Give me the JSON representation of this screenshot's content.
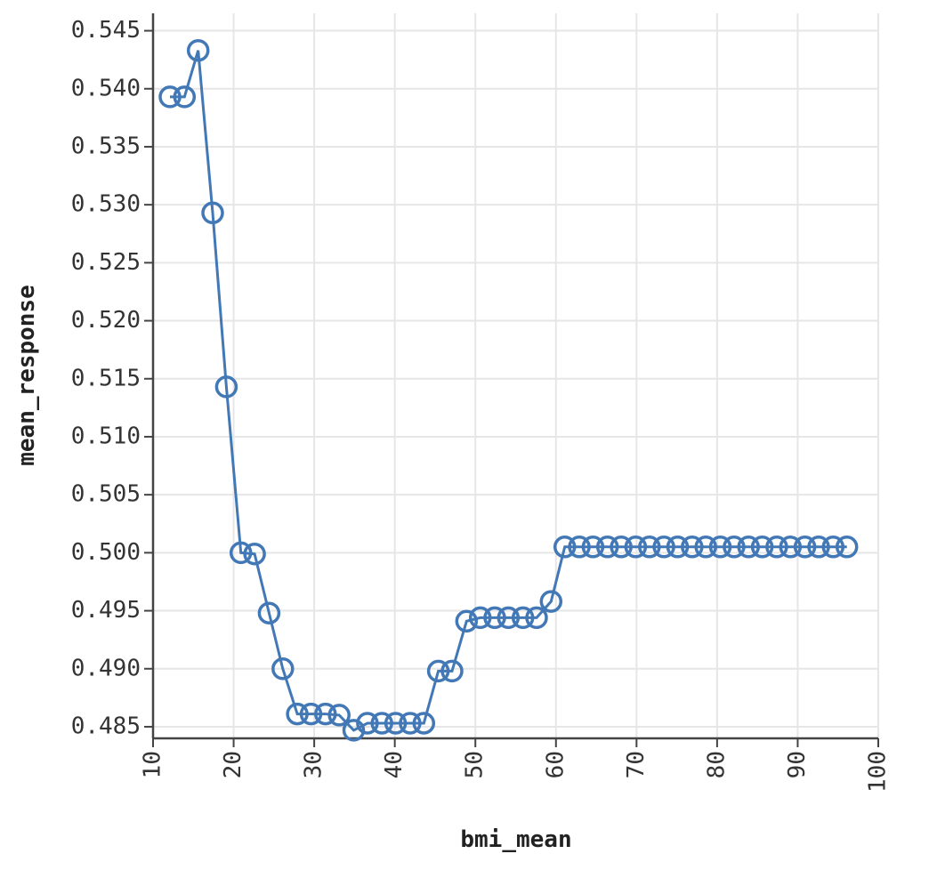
{
  "chart_data": {
    "type": "line",
    "xlabel": "bmi_mean",
    "ylabel": "mean_response",
    "xlim": [
      10,
      100
    ],
    "ylim": [
      0.484,
      0.5465
    ],
    "xticks": [
      10,
      20,
      30,
      40,
      50,
      60,
      70,
      80,
      90,
      100
    ],
    "yticks": [
      0.485,
      0.49,
      0.495,
      0.5,
      0.505,
      0.51,
      0.515,
      0.52,
      0.525,
      0.53,
      0.535,
      0.54,
      0.545
    ],
    "xtick_labels": [
      "10",
      "20",
      "30",
      "40",
      "50",
      "60",
      "70",
      "80",
      "90",
      "100"
    ],
    "ytick_labels": [
      "0.485",
      "0.490",
      "0.495",
      "0.500",
      "0.505",
      "0.510",
      "0.515",
      "0.520",
      "0.525",
      "0.530",
      "0.535",
      "0.540",
      "0.545"
    ],
    "grid": true,
    "color": "#4378b6",
    "series": [
      {
        "points": [
          [
            12.1,
            0.5393
          ],
          [
            13.9,
            0.5393
          ],
          [
            15.6,
            0.5433
          ],
          [
            17.4,
            0.5293
          ],
          [
            19.1,
            0.5143
          ],
          [
            20.9,
            0.5
          ],
          [
            22.6,
            0.4999
          ],
          [
            24.4,
            0.4948
          ],
          [
            26.1,
            0.49
          ],
          [
            27.9,
            0.4861
          ],
          [
            29.6,
            0.4861
          ],
          [
            31.4,
            0.4861
          ],
          [
            33.1,
            0.486
          ],
          [
            34.9,
            0.4847
          ],
          [
            36.6,
            0.4853
          ],
          [
            38.4,
            0.4853
          ],
          [
            40.1,
            0.4853
          ],
          [
            41.9,
            0.4853
          ],
          [
            43.6,
            0.4853
          ],
          [
            45.4,
            0.4898
          ],
          [
            47.1,
            0.4898
          ],
          [
            48.9,
            0.4941
          ],
          [
            50.6,
            0.4944
          ],
          [
            52.4,
            0.4944
          ],
          [
            54.1,
            0.4944
          ],
          [
            55.9,
            0.4944
          ],
          [
            57.6,
            0.4944
          ],
          [
            59.4,
            0.4958
          ],
          [
            61.1,
            0.5005
          ],
          [
            62.9,
            0.5005
          ],
          [
            64.6,
            0.5005
          ],
          [
            66.4,
            0.5005
          ],
          [
            68.1,
            0.5005
          ],
          [
            69.9,
            0.5005
          ],
          [
            71.6,
            0.5005
          ],
          [
            73.4,
            0.5005
          ],
          [
            75.1,
            0.5005
          ],
          [
            76.9,
            0.5005
          ],
          [
            78.6,
            0.5005
          ],
          [
            80.4,
            0.5005
          ],
          [
            82.1,
            0.5005
          ],
          [
            83.9,
            0.5005
          ],
          [
            85.6,
            0.5005
          ],
          [
            87.4,
            0.5005
          ],
          [
            89.1,
            0.5005
          ],
          [
            90.9,
            0.5005
          ],
          [
            92.6,
            0.5005
          ],
          [
            94.4,
            0.5005
          ],
          [
            96.1,
            0.5005
          ]
        ]
      }
    ]
  }
}
